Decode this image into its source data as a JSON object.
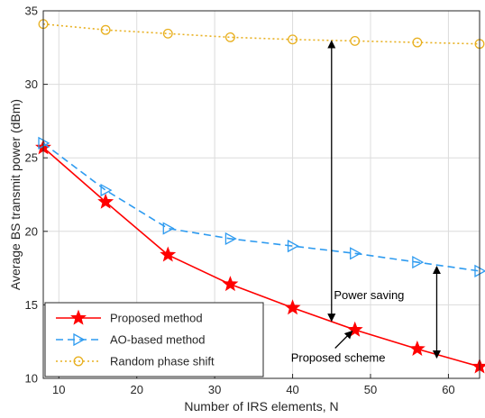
{
  "chart_data": {
    "type": "line",
    "title": "",
    "xlabel": "Number of IRS elements, N",
    "ylabel": "Average BS transmit power (dBm)",
    "xlim": [
      8,
      64
    ],
    "ylim": [
      10,
      35
    ],
    "xticks": [
      10,
      20,
      30,
      40,
      50,
      60
    ],
    "yticks": [
      10,
      15,
      20,
      25,
      30,
      35
    ],
    "grid": true,
    "legend_position": "bottom-left",
    "x": [
      8,
      16,
      24,
      32,
      40,
      48,
      56,
      64
    ],
    "series": [
      {
        "name": "Proposed method",
        "values": [
          25.7,
          22.0,
          18.4,
          16.4,
          14.8,
          13.3,
          12.0,
          10.8
        ],
        "color": "#ff0000",
        "line": "solid",
        "marker": "star"
      },
      {
        "name": "AO-based method",
        "values": [
          26.0,
          22.8,
          20.2,
          19.5,
          19.0,
          18.5,
          17.9,
          17.3
        ],
        "color": "#2e9bf0",
        "line": "dashed",
        "marker": "triangle-right"
      },
      {
        "name": "Random phase shift",
        "values": [
          34.1,
          33.7,
          33.45,
          33.2,
          33.05,
          32.95,
          32.85,
          32.75
        ],
        "color": "#e8b020",
        "line": "dotted",
        "marker": "circle"
      }
    ],
    "annotations": [
      {
        "text": "Power saving",
        "arrow_x": 58.5,
        "arrow_from": 17.6,
        "arrow_to": 11.4
      },
      {
        "text": "Proposed scheme",
        "arrow_head": [
          48,
          13.4
        ]
      }
    ],
    "double_arrows": [
      {
        "x": 45,
        "from": 32.95,
        "to": 13.9
      },
      {
        "x": 58.5,
        "from": 17.6,
        "to": 11.4
      }
    ]
  }
}
